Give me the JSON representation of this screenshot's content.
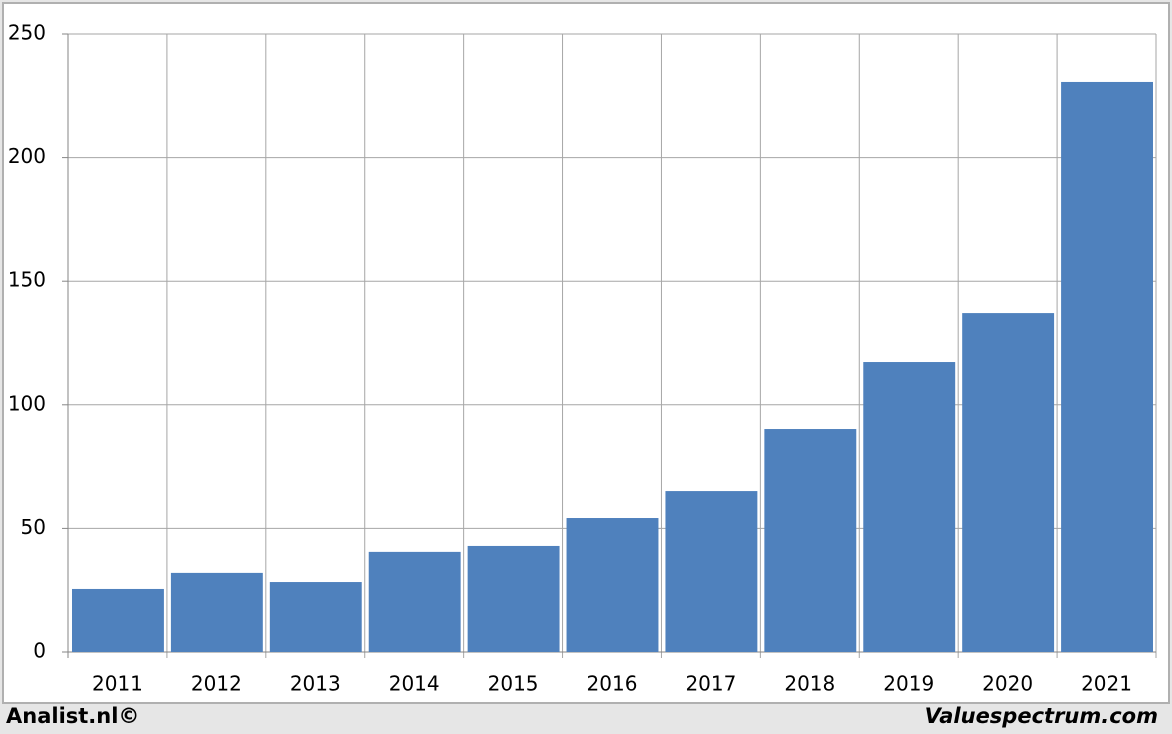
{
  "chart_data": {
    "type": "bar",
    "categories": [
      "2011",
      "2012",
      "2013",
      "2014",
      "2015",
      "2016",
      "2017",
      "2018",
      "2019",
      "2020",
      "2021"
    ],
    "values": [
      25.5,
      32,
      28.3,
      40.5,
      42.9,
      54.2,
      65.1,
      90.2,
      117.3,
      137.1,
      230.6
    ],
    "color": "#4f81bd",
    "ylim": [
      0,
      250
    ],
    "yticks": [
      0,
      50,
      100,
      150,
      200,
      250
    ],
    "grid": true,
    "footer_left": "Analist.nl©",
    "footer_right": "Valuespectrum.com"
  }
}
